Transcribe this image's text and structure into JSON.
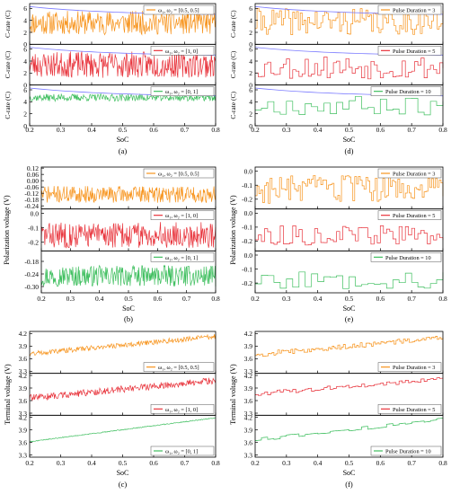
{
  "colors": {
    "orange": "#f7941d",
    "red": "#e8343c",
    "green": "#3fbf5f",
    "blue": "#7b7bff"
  },
  "chart_data": [
    {
      "id": "a",
      "type": "line",
      "caption": "(a)",
      "xlabel": "SoC",
      "xlim": [
        0.2,
        0.8
      ],
      "xticks": [
        "0.2",
        "0.3",
        "0.4",
        "0.5",
        "0.6",
        "0.7",
        "0.8"
      ],
      "panels": [
        {
          "ylabel": "C-rate (C)",
          "ylim": [
            0,
            6.8
          ],
          "yticks": [
            "0",
            "2",
            "4",
            "6"
          ],
          "series": [
            {
              "name": "ω₁, ω₂ = [0.5, 0.5]",
              "color": "orange",
              "level": 3.6,
              "amp": 2.0,
              "seed": 11,
              "step": 1
            },
            {
              "name": "",
              "color": "blue",
              "limit": [
                6.3,
                5.0
              ]
            }
          ],
          "legend_pos": "top-right"
        },
        {
          "ylabel": "C-rate (C)",
          "ylim": [
            0,
            6.8
          ],
          "yticks": [
            "0",
            "2",
            "4",
            "6"
          ],
          "series": [
            {
              "name": "ω₁, ω₂ = [1, 0]",
              "color": "red",
              "level": 3.4,
              "amp": 2.2,
              "seed": 23,
              "step": 1
            },
            {
              "name": "",
              "color": "blue",
              "limit": [
                6.3,
                5.0
              ]
            }
          ],
          "legend_pos": "top-right"
        },
        {
          "ylabel": "C-rate (C)",
          "ylim": [
            0,
            6.8
          ],
          "yticks": [
            "0",
            "2",
            "4",
            "6"
          ],
          "series": [
            {
              "name": "ω₁, ω₂ = [0, 1]",
              "color": "green",
              "level": 4.7,
              "amp": 0.6,
              "seed": 37,
              "step": 1
            },
            {
              "name": "",
              "color": "blue",
              "limit": [
                6.3,
                5.0
              ]
            }
          ],
          "legend_pos": "top-right"
        }
      ]
    },
    {
      "id": "d",
      "type": "line",
      "caption": "(d)",
      "xlabel": "SoC",
      "xlim": [
        0.2,
        0.8
      ],
      "xticks": [
        "0.2",
        "0.3",
        "0.4",
        "0.5",
        "0.6",
        "0.7",
        "0.8"
      ],
      "panels": [
        {
          "ylabel": "C-rate (C)",
          "ylim": [
            0,
            6.8
          ],
          "yticks": [
            "0",
            "2",
            "4",
            "6"
          ],
          "series": [
            {
              "name": "Pulse Duration = 3",
              "color": "orange",
              "level": 3.8,
              "amp": 2.2,
              "seed": 41,
              "step": 3
            },
            {
              "name": "",
              "color": "blue",
              "limit": [
                6.3,
                5.0
              ]
            }
          ],
          "legend_pos": "top-right"
        },
        {
          "ylabel": "C-rate (C)",
          "ylim": [
            0,
            6.8
          ],
          "yticks": [
            "0",
            "2",
            "4",
            "6"
          ],
          "series": [
            {
              "name": "Pulse Duration = 5",
              "color": "red",
              "level": 3.0,
              "amp": 2.0,
              "seed": 53,
              "step": 5
            },
            {
              "name": "",
              "color": "blue",
              "limit": [
                6.3,
                5.0
              ]
            }
          ],
          "legend_pos": "top-right"
        },
        {
          "ylabel": "C-rate (C)",
          "ylim": [
            0,
            6.8
          ],
          "yticks": [
            "0",
            "2",
            "4",
            "6"
          ],
          "series": [
            {
              "name": "Pulse Duration = 10",
              "color": "green",
              "level": 3.4,
              "amp": 1.6,
              "seed": 67,
              "step": 10
            },
            {
              "name": "",
              "color": "blue",
              "limit": [
                6.3,
                5.0
              ]
            }
          ],
          "legend_pos": "top-right"
        }
      ]
    },
    {
      "id": "b",
      "type": "line",
      "caption": "(b)",
      "xlabel": "SoC",
      "xlim": [
        0.2,
        0.8
      ],
      "ylabel": "Polarization voltage (V)",
      "xticks": [
        "0.2",
        "0.3",
        "0.4",
        "0.5",
        "0.6",
        "0.7",
        "0.8"
      ],
      "panels": [
        {
          "ylim": [
            -0.27,
            0.13
          ],
          "yticks": [
            "0.12",
            "0.06",
            "0.00",
            "-0.06",
            "-0.12",
            "-0.18",
            "-0.24"
          ],
          "tickvals": [
            0.12,
            0.06,
            0.0,
            -0.06,
            -0.12,
            -0.18,
            -0.24
          ],
          "series": [
            {
              "name": "ω₁, ω₂ = [0.5, 0.5]",
              "color": "orange",
              "level": -0.13,
              "amp": 0.08,
              "seed": 71,
              "step": 1
            }
          ],
          "legend_pos": "top-right"
        },
        {
          "ylim": [
            -0.26,
            0.03
          ],
          "yticks": [
            "0.0",
            "-0.1",
            "-0.2"
          ],
          "tickvals": [
            0.0,
            -0.1,
            -0.2
          ],
          "series": [
            {
              "name": "ω₁, ω₂ = [1, 0]",
              "color": "red",
              "level": -0.15,
              "amp": 0.09,
              "seed": 83,
              "step": 1
            }
          ],
          "legend_pos": "top-right"
        },
        {
          "ylim": [
            -0.33,
            -0.13
          ],
          "yticks": [
            "-0.18",
            "-0.24",
            "-0.30"
          ],
          "tickvals": [
            -0.18,
            -0.24,
            -0.3
          ],
          "series": [
            {
              "name": "ω₁, ω₂ = [0, 1]",
              "color": "green",
              "level": -0.25,
              "amp": 0.05,
              "seed": 97,
              "step": 1
            }
          ],
          "legend_pos": "top-right"
        }
      ]
    },
    {
      "id": "e",
      "type": "line",
      "caption": "(e)",
      "xlabel": "SoC",
      "xlim": [
        0.2,
        0.8
      ],
      "ylabel": "Polarization voltage (V)",
      "xticks": [
        "0.2",
        "0.3",
        "0.4",
        "0.5",
        "0.6",
        "0.7",
        "0.8"
      ],
      "panels": [
        {
          "ylim": [
            -0.27,
            0.03
          ],
          "yticks": [
            "0.0",
            "-0.1",
            "-0.2"
          ],
          "tickvals": [
            0.0,
            -0.1,
            -0.2
          ],
          "series": [
            {
              "name": "Pulse Duration = 3",
              "color": "orange",
              "level": -0.13,
              "amp": 0.1,
              "seed": 103,
              "step": 3
            }
          ],
          "legend_pos": "top-right"
        },
        {
          "ylim": [
            -0.27,
            0.03
          ],
          "yticks": [
            "0.0",
            "-0.1",
            "-0.2"
          ],
          "tickvals": [
            0.0,
            -0.1,
            -0.2
          ],
          "series": [
            {
              "name": "Pulse Duration = 5",
              "color": "red",
              "level": -0.16,
              "amp": 0.07,
              "seed": 113,
              "step": 5
            }
          ],
          "legend_pos": "top-right"
        },
        {
          "ylim": [
            -0.27,
            0.03
          ],
          "yticks": [
            "0.0",
            "-0.1",
            "-0.2"
          ],
          "tickvals": [
            0.0,
            -0.1,
            -0.2
          ],
          "series": [
            {
              "name": "Pulse Duration = 10",
              "color": "green",
              "level": -0.18,
              "amp": 0.06,
              "seed": 127,
              "step": 10
            }
          ],
          "legend_pos": "top-right"
        }
      ]
    },
    {
      "id": "c",
      "type": "line",
      "caption": "(c)",
      "xlabel": "SoC",
      "xlim": [
        0.2,
        0.8
      ],
      "ylabel": "Terminal voltage (V)",
      "xticks": [
        "0.2",
        "0.3",
        "0.4",
        "0.5",
        "0.6",
        "0.7",
        "0.8"
      ],
      "panels": [
        {
          "ylim": [
            3.25,
            4.25
          ],
          "yticks": [
            "4.2",
            "3.9",
            "3.6",
            "3.3"
          ],
          "tickvals": [
            4.2,
            3.9,
            3.6,
            3.3
          ],
          "series": [
            {
              "name": "ω₁, ω₂ = [0.5, 0.5]",
              "color": "orange",
              "start": 3.72,
              "end": 4.13,
              "amp": 0.06,
              "seed": 131,
              "step": 1
            }
          ],
          "legend_pos": "bottom-right"
        },
        {
          "ylim": [
            3.25,
            4.25
          ],
          "yticks": [
            "4.2",
            "3.9",
            "3.6",
            "3.3"
          ],
          "tickvals": [
            4.2,
            3.9,
            3.6,
            3.3
          ],
          "series": [
            {
              "name": "ω₁, ω₂ = [1, 0]",
              "color": "red",
              "start": 3.66,
              "end": 4.08,
              "amp": 0.08,
              "seed": 139,
              "step": 1
            }
          ],
          "legend_pos": "bottom-right"
        },
        {
          "ylim": [
            3.25,
            4.25
          ],
          "yticks": [
            "4.2",
            "3.9",
            "3.6",
            "3.3"
          ],
          "tickvals": [
            4.2,
            3.9,
            3.6,
            3.3
          ],
          "series": [
            {
              "name": "ω₁, ω₂ = [0, 1]",
              "color": "green",
              "start": 3.62,
              "end": 4.19,
              "amp": 0.01,
              "seed": 149,
              "step": 1
            }
          ],
          "legend_pos": "bottom-right"
        }
      ]
    },
    {
      "id": "f",
      "type": "line",
      "caption": "(f)",
      "xlabel": "SoC",
      "xlim": [
        0.2,
        0.8
      ],
      "ylabel": "Terminal voltage (V)",
      "xticks": [
        "0.2",
        "0.3",
        "0.4",
        "0.5",
        "0.6",
        "0.7",
        "0.8"
      ],
      "panels": [
        {
          "ylim": [
            3.25,
            4.25
          ],
          "yticks": [
            "4.2",
            "3.9",
            "3.6",
            "3.3"
          ],
          "tickvals": [
            4.2,
            3.9,
            3.6,
            3.3
          ],
          "series": [
            {
              "name": "Pulse Duration = 3",
              "color": "orange",
              "start": 3.7,
              "end": 4.1,
              "amp": 0.06,
              "seed": 157,
              "step": 3
            }
          ],
          "legend_pos": "bottom-right"
        },
        {
          "ylim": [
            3.25,
            4.25
          ],
          "yticks": [
            "4.2",
            "3.9",
            "3.6",
            "3.3"
          ],
          "tickvals": [
            4.2,
            3.9,
            3.6,
            3.3
          ],
          "series": [
            {
              "name": "Pulse Duration = 5",
              "color": "red",
              "start": 3.76,
              "end": 4.12,
              "amp": 0.05,
              "seed": 163,
              "step": 5
            }
          ],
          "legend_pos": "bottom-right"
        },
        {
          "ylim": [
            3.25,
            4.25
          ],
          "yticks": [
            "4.2",
            "3.9",
            "3.6",
            "3.3"
          ],
          "tickvals": [
            4.2,
            3.9,
            3.6,
            3.3
          ],
          "series": [
            {
              "name": "Pulse Duration = 10",
              "color": "green",
              "start": 3.66,
              "end": 4.15,
              "amp": 0.04,
              "seed": 173,
              "step": 10
            }
          ],
          "legend_pos": "bottom-right"
        }
      ]
    }
  ]
}
